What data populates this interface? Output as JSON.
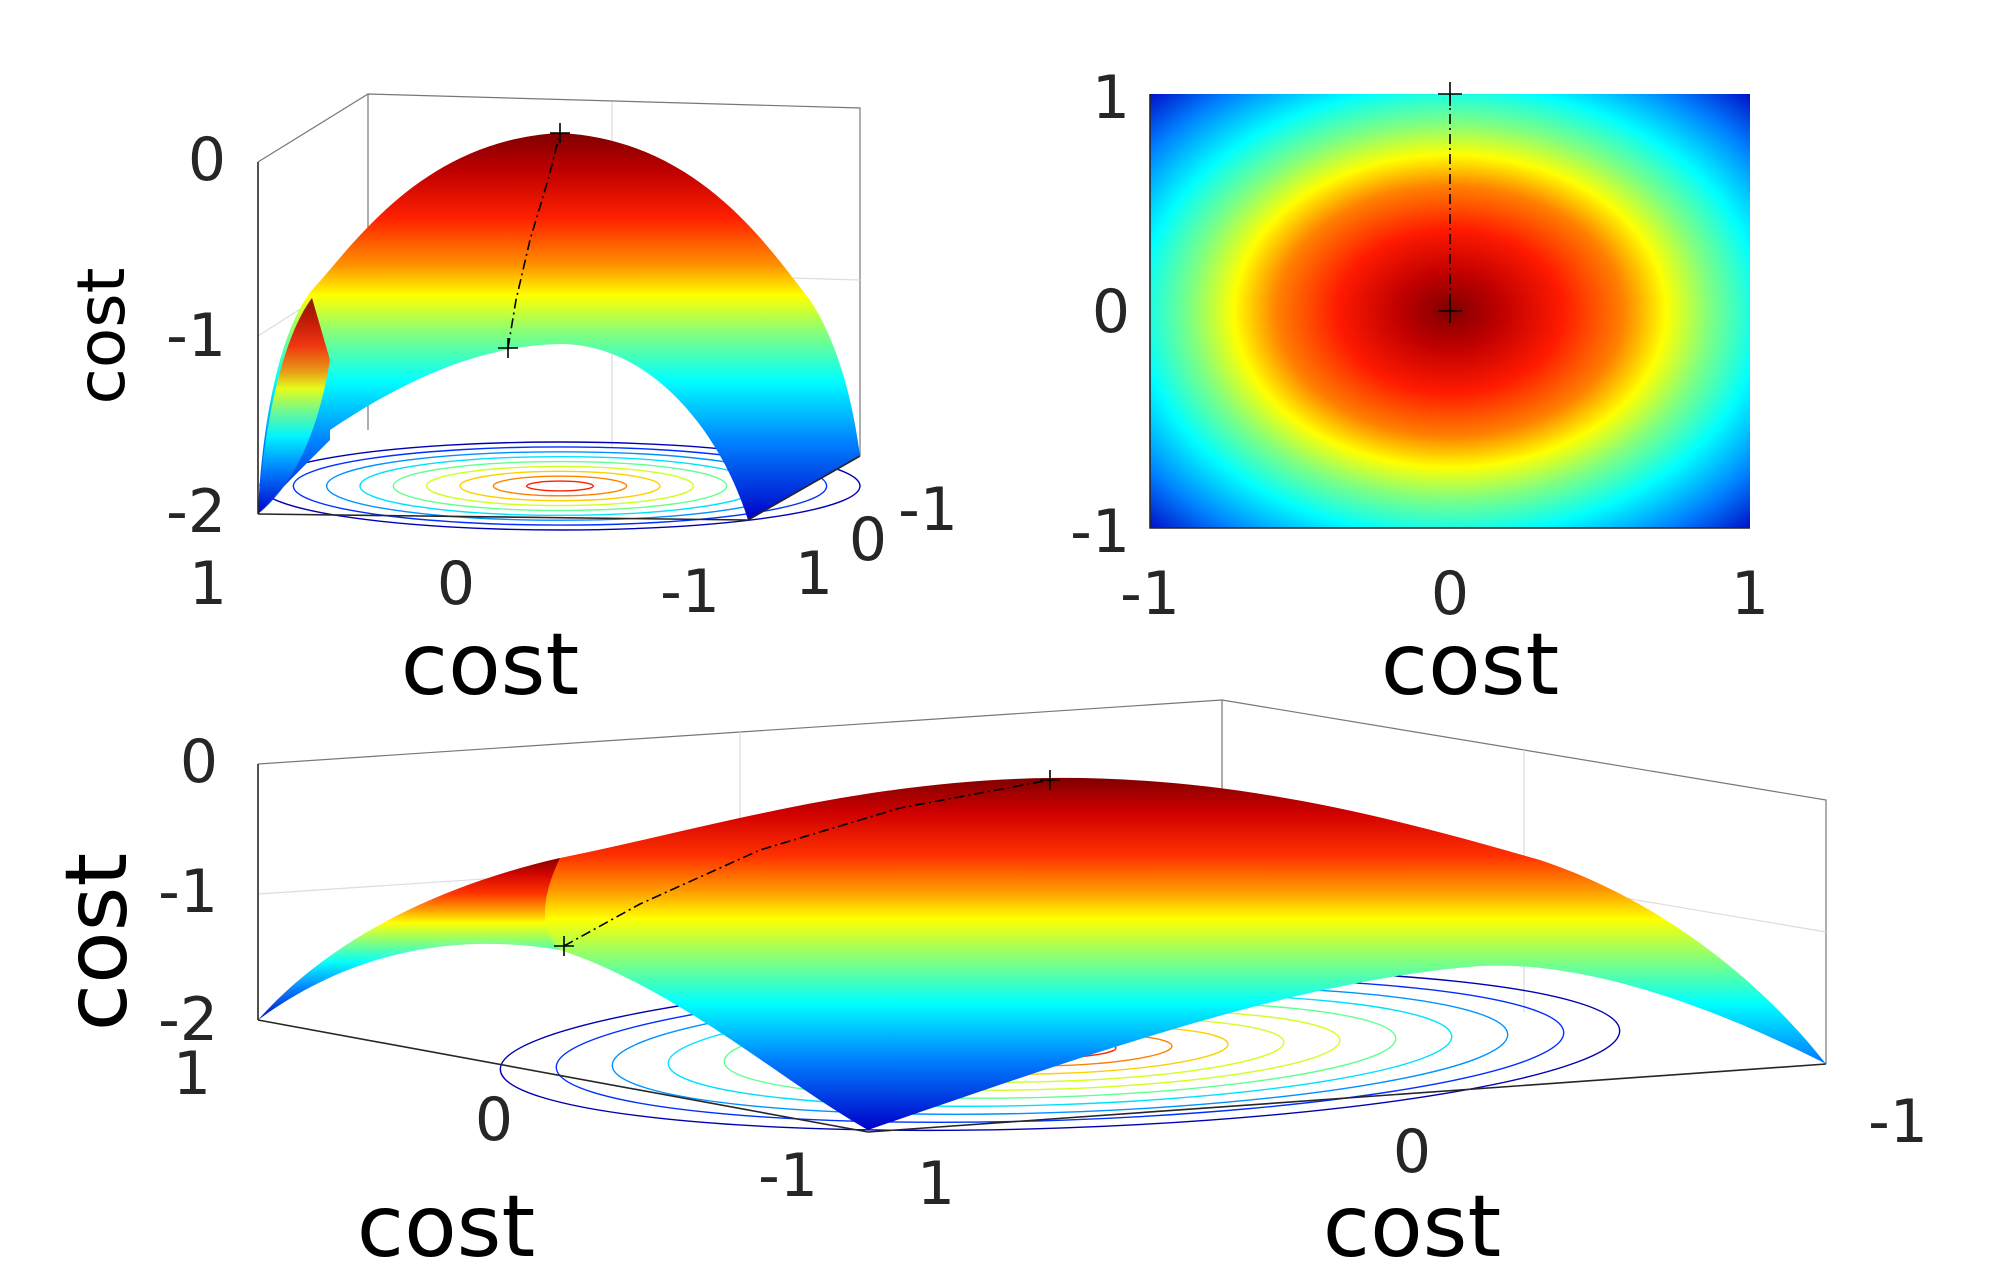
{
  "chart_data": [
    {
      "type": "surface",
      "view": "3d-side",
      "function": "z = -(x^2 + y^2)",
      "xlabel": "cost",
      "ylabel": "",
      "zlabel": "cost",
      "x_ticks": [
        "1",
        "0",
        "-1"
      ],
      "y_ticks": [
        "1",
        "0",
        "-1"
      ],
      "z_ticks": [
        "0",
        "-1",
        "-2"
      ],
      "zlim": [
        -2,
        0
      ],
      "colormap": "jet",
      "contour_base": true,
      "path": [
        {
          "x": 0,
          "y": 1,
          "z": -1
        },
        {
          "x": 0,
          "y": 0,
          "z": 0
        }
      ]
    },
    {
      "type": "heatmap",
      "view": "top",
      "function": "z = -(x^2 + y^2)",
      "xlabel": "cost",
      "x_ticks": [
        "-1",
        "0",
        "1"
      ],
      "y_ticks": [
        "1",
        "0",
        "-1"
      ],
      "xlim": [
        -1,
        1
      ],
      "ylim": [
        -1,
        1
      ],
      "colormap": "jet",
      "path": [
        {
          "x": 0,
          "y": 1
        },
        {
          "x": 0,
          "y": 0
        }
      ]
    },
    {
      "type": "surface",
      "view": "3d-oblique",
      "function": "z = -(x^2 + y^2)",
      "xlabel": "cost",
      "ylabel": "cost",
      "zlabel": "cost",
      "x_ticks": [
        "1",
        "0",
        "-1"
      ],
      "y_ticks": [
        "1",
        "0",
        "-1"
      ],
      "z_ticks": [
        "0",
        "-1",
        "-2"
      ],
      "zlim": [
        -2,
        0
      ],
      "colormap": "jet",
      "contour_base": true,
      "path": [
        {
          "x": 0,
          "y": 1,
          "z": -1
        },
        {
          "x": 0,
          "y": 0,
          "z": 0
        }
      ]
    }
  ]
}
